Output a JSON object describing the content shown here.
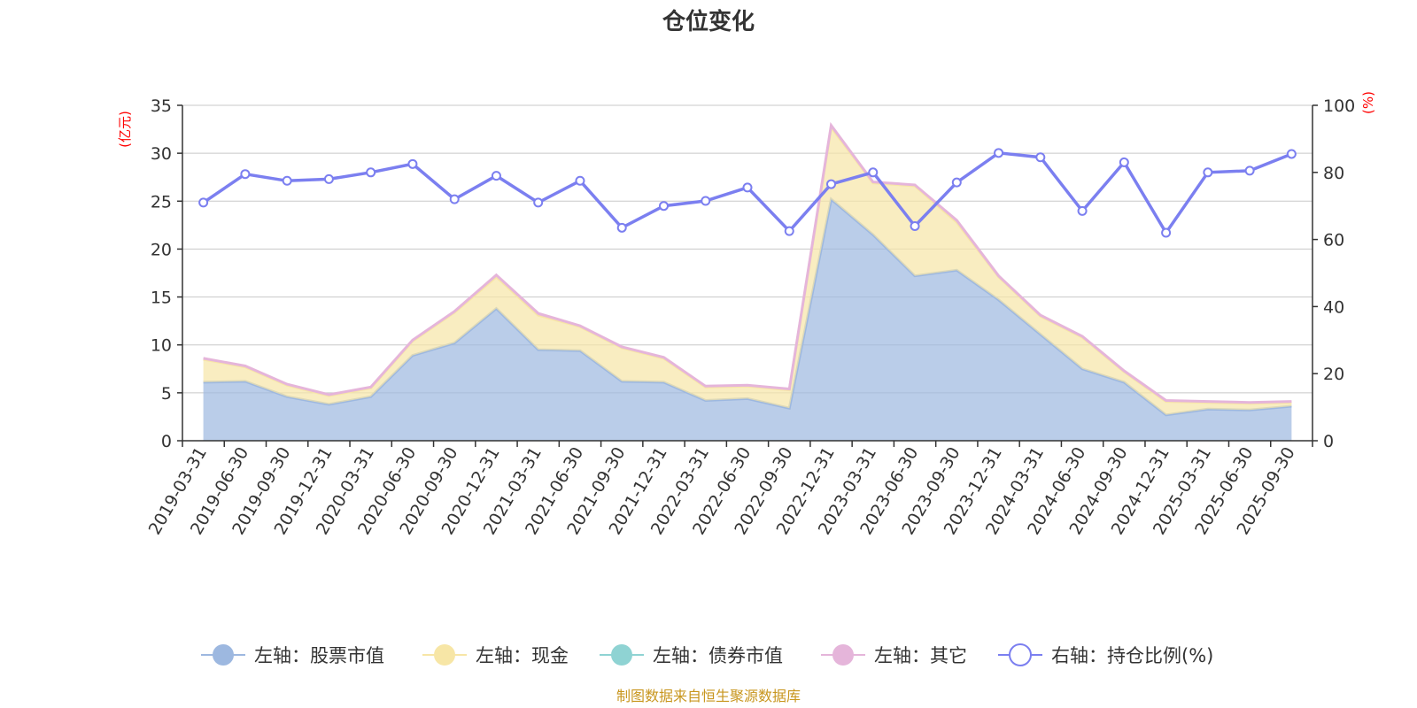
{
  "chart_data": {
    "type": "area",
    "title": "仓位变化",
    "left_axis": {
      "unit": "(亿元)",
      "ylim": [
        0,
        35
      ],
      "ticks": [
        0,
        5,
        10,
        15,
        20,
        25,
        30,
        35
      ]
    },
    "right_axis": {
      "unit": "(%)",
      "ylim": [
        0,
        100
      ],
      "ticks": [
        0,
        20,
        40,
        60,
        80,
        100
      ]
    },
    "grid": true,
    "legend_position": "bottom",
    "categories": [
      "2019-03-31",
      "2019-06-30",
      "2019-09-30",
      "2019-12-31",
      "2020-03-31",
      "2020-06-30",
      "2020-09-30",
      "2020-12-31",
      "2021-03-31",
      "2021-06-30",
      "2021-09-30",
      "2021-12-31",
      "2022-03-31",
      "2022-06-30",
      "2022-09-30",
      "2022-12-31",
      "2023-03-31",
      "2023-06-30",
      "2023-09-30",
      "2023-12-31",
      "2024-03-31",
      "2024-06-30",
      "2024-09-30",
      "2024-12-31",
      "2025-03-31",
      "2025-06-30",
      "2025-09-30"
    ],
    "series": [
      {
        "name": "左轴：股票市值",
        "axis": "left",
        "color": "#9db8e0",
        "values": [
          6.1,
          6.2,
          4.6,
          3.8,
          4.6,
          8.9,
          10.2,
          13.8,
          9.5,
          9.4,
          6.2,
          6.1,
          4.2,
          4.4,
          3.4,
          25.2,
          21.5,
          17.2,
          17.8,
          14.7,
          11.1,
          7.5,
          6.1,
          2.7,
          3.3,
          3.2,
          3.6
        ]
      },
      {
        "name": "左轴：现金",
        "axis": "left",
        "color": "#f7e6a6",
        "values": [
          2.4,
          1.5,
          1.2,
          0.9,
          0.9,
          1.5,
          3.2,
          3.3,
          3.6,
          2.5,
          3.5,
          2.5,
          1.4,
          1.3,
          1.9,
          7.5,
          5.4,
          9.4,
          5.0,
          2.4,
          1.9,
          3.3,
          1.1,
          1.4,
          0.7,
          0.7,
          0.4
        ]
      },
      {
        "name": "左轴：债券市值",
        "axis": "left",
        "color": "#8fd3d3",
        "values": [
          0,
          0,
          0,
          0,
          0,
          0,
          0,
          0,
          0,
          0,
          0,
          0,
          0,
          0,
          0,
          0,
          0,
          0,
          0,
          0,
          0,
          0,
          0,
          0,
          0,
          0,
          0
        ]
      },
      {
        "name": "左轴：其它",
        "axis": "left",
        "color": "#e5b5da",
        "values": [
          0.1,
          0.1,
          0.1,
          0.1,
          0.1,
          0.1,
          0.1,
          0.2,
          0.2,
          0.1,
          0.1,
          0.1,
          0.1,
          0.1,
          0.1,
          0.2,
          0.1,
          0.1,
          0.2,
          0.1,
          0.1,
          0.1,
          0.1,
          0.1,
          0.1,
          0.1,
          0.1
        ]
      },
      {
        "name": "右轴：持仓比例(%)",
        "axis": "right",
        "color": "#7b7ff0",
        "values": [
          71,
          79.5,
          77.5,
          78,
          80,
          82.5,
          72,
          79,
          71,
          77.5,
          63.5,
          70,
          71.5,
          75.5,
          62.5,
          76.5,
          80,
          64,
          77,
          85.8,
          84.5,
          68.5,
          83,
          62,
          80,
          80.5,
          85.5
        ]
      }
    ]
  },
  "footer": {
    "source": "制图数据来自恒生聚源数据库",
    "source_color": "#c8961e"
  },
  "colors": {
    "unit_label": "#ff0000",
    "axis": "#333333",
    "grid": "#c8c8c8"
  }
}
